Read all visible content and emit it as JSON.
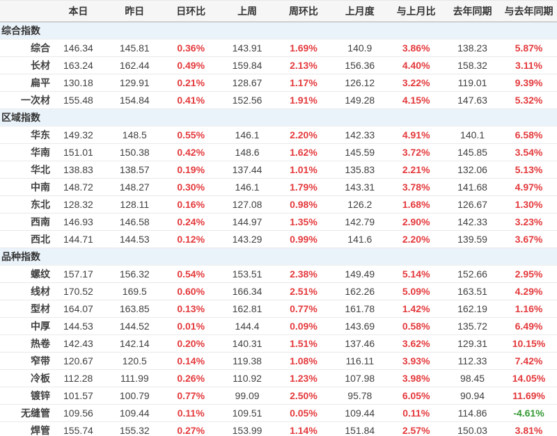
{
  "colors": {
    "up_percent": "#e4393c",
    "down_percent": "#339933",
    "section_row_background": "#eaf3fa",
    "header_row_background": "#f6f6f6",
    "text": "#404040"
  },
  "chart_data": {
    "type": "table",
    "columns": [
      "",
      "本日",
      "昨日",
      "日环比",
      "上周",
      "周环比",
      "上月度",
      "与上月比",
      "去年同期",
      "与去年同期"
    ],
    "sections": [
      {
        "title": "综合指数",
        "rows": [
          {
            "label": "综合",
            "values": [
              "146.34",
              "145.81",
              "0.36%",
              "143.91",
              "1.69%",
              "140.9",
              "3.86%",
              "138.23",
              "5.87%"
            ]
          },
          {
            "label": "长材",
            "values": [
              "163.24",
              "162.44",
              "0.49%",
              "159.84",
              "2.13%",
              "156.36",
              "4.40%",
              "158.32",
              "3.11%"
            ]
          },
          {
            "label": "扁平",
            "values": [
              "130.18",
              "129.91",
              "0.21%",
              "128.67",
              "1.17%",
              "126.12",
              "3.22%",
              "119.01",
              "9.39%"
            ]
          },
          {
            "label": "一次材",
            "values": [
              "155.48",
              "154.84",
              "0.41%",
              "152.56",
              "1.91%",
              "149.28",
              "4.15%",
              "147.63",
              "5.32%"
            ]
          }
        ]
      },
      {
        "title": "区域指数",
        "rows": [
          {
            "label": "华东",
            "values": [
              "149.32",
              "148.5",
              "0.55%",
              "146.1",
              "2.20%",
              "142.33",
              "4.91%",
              "140.1",
              "6.58%"
            ]
          },
          {
            "label": "华南",
            "values": [
              "151.01",
              "150.38",
              "0.42%",
              "148.6",
              "1.62%",
              "145.59",
              "3.72%",
              "145.85",
              "3.54%"
            ]
          },
          {
            "label": "华北",
            "values": [
              "138.83",
              "138.57",
              "0.19%",
              "137.44",
              "1.01%",
              "135.83",
              "2.21%",
              "132.06",
              "5.13%"
            ]
          },
          {
            "label": "中南",
            "values": [
              "148.72",
              "148.27",
              "0.30%",
              "146.1",
              "1.79%",
              "143.31",
              "3.78%",
              "141.68",
              "4.97%"
            ]
          },
          {
            "label": "东北",
            "values": [
              "128.32",
              "128.11",
              "0.16%",
              "127.08",
              "0.98%",
              "126.2",
              "1.68%",
              "126.67",
              "1.30%"
            ]
          },
          {
            "label": "西南",
            "values": [
              "146.93",
              "146.58",
              "0.24%",
              "144.97",
              "1.35%",
              "142.79",
              "2.90%",
              "142.33",
              "3.23%"
            ]
          },
          {
            "label": "西北",
            "values": [
              "144.71",
              "144.53",
              "0.12%",
              "143.29",
              "0.99%",
              "141.6",
              "2.20%",
              "139.59",
              "3.67%"
            ]
          }
        ]
      },
      {
        "title": "品种指数",
        "rows": [
          {
            "label": "螺纹",
            "values": [
              "157.17",
              "156.32",
              "0.54%",
              "153.51",
              "2.38%",
              "149.49",
              "5.14%",
              "152.66",
              "2.95%"
            ]
          },
          {
            "label": "线材",
            "values": [
              "170.52",
              "169.5",
              "0.60%",
              "166.34",
              "2.51%",
              "162.26",
              "5.09%",
              "163.51",
              "4.29%"
            ]
          },
          {
            "label": "型材",
            "values": [
              "164.07",
              "163.85",
              "0.13%",
              "162.81",
              "0.77%",
              "161.78",
              "1.42%",
              "162.19",
              "1.16%"
            ]
          },
          {
            "label": "中厚",
            "values": [
              "144.53",
              "144.52",
              "0.01%",
              "144.4",
              "0.09%",
              "143.69",
              "0.58%",
              "135.72",
              "6.49%"
            ]
          },
          {
            "label": "热卷",
            "values": [
              "142.43",
              "142.14",
              "0.20%",
              "140.31",
              "1.51%",
              "137.46",
              "3.62%",
              "129.31",
              "10.15%"
            ]
          },
          {
            "label": "窄带",
            "values": [
              "120.67",
              "120.5",
              "0.14%",
              "119.38",
              "1.08%",
              "116.11",
              "3.93%",
              "112.33",
              "7.42%"
            ]
          },
          {
            "label": "冷板",
            "values": [
              "112.28",
              "111.99",
              "0.26%",
              "110.92",
              "1.23%",
              "107.98",
              "3.98%",
              "98.45",
              "14.05%"
            ]
          },
          {
            "label": "镀锌",
            "values": [
              "101.57",
              "100.79",
              "0.77%",
              "99.09",
              "2.50%",
              "95.78",
              "6.05%",
              "90.94",
              "11.69%"
            ]
          },
          {
            "label": "无缝管",
            "values": [
              "109.56",
              "109.44",
              "0.11%",
              "109.51",
              "0.05%",
              "109.44",
              "0.11%",
              "114.86",
              "-4.61%"
            ]
          },
          {
            "label": "焊管",
            "values": [
              "155.74",
              "155.32",
              "0.27%",
              "153.99",
              "1.14%",
              "151.84",
              "2.57%",
              "150.03",
              "3.81%"
            ]
          }
        ]
      }
    ]
  }
}
